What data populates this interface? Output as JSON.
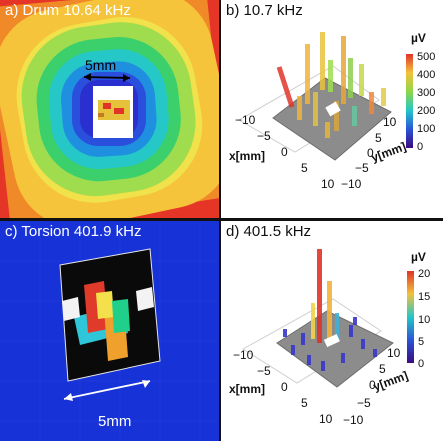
{
  "panels": {
    "a": {
      "label": "a) Drum 10.64 kHz",
      "scale": "5mm"
    },
    "b": {
      "label": "b) 10.7 kHz",
      "unit": "µV",
      "cbar_ticks": [
        "500",
        "400",
        "300",
        "200",
        "100",
        "0"
      ],
      "x_ticks": [
        "−10",
        "−5",
        "0",
        "5",
        "10"
      ],
      "y_ticks": [
        "10",
        "5",
        "0",
        "−5",
        "−10"
      ],
      "xlabel": "x[mm]",
      "ylabel": "y[mm]"
    },
    "c": {
      "label": "c) Torsion 401.9 kHz",
      "scale": "5mm"
    },
    "d": {
      "label": "d) 401.5 kHz",
      "unit": "µV",
      "cbar_ticks": [
        "20",
        "15",
        "10",
        "5",
        "0"
      ],
      "x_ticks": [
        "−10",
        "−5",
        "0",
        "5",
        "10"
      ],
      "y_ticks": [
        "10",
        "5",
        "0",
        "−5",
        "−10"
      ],
      "xlabel": "x[mm]",
      "ylabel": "y[mm]"
    }
  },
  "colors": {
    "jet_red": "#e0342a",
    "jet_yellow": "#f1e14a",
    "jet_green": "#3bd06b",
    "jet_cyan": "#23c7e0",
    "jet_blue": "#1f2fd8",
    "plane_gray": "#8a8a8a"
  }
}
